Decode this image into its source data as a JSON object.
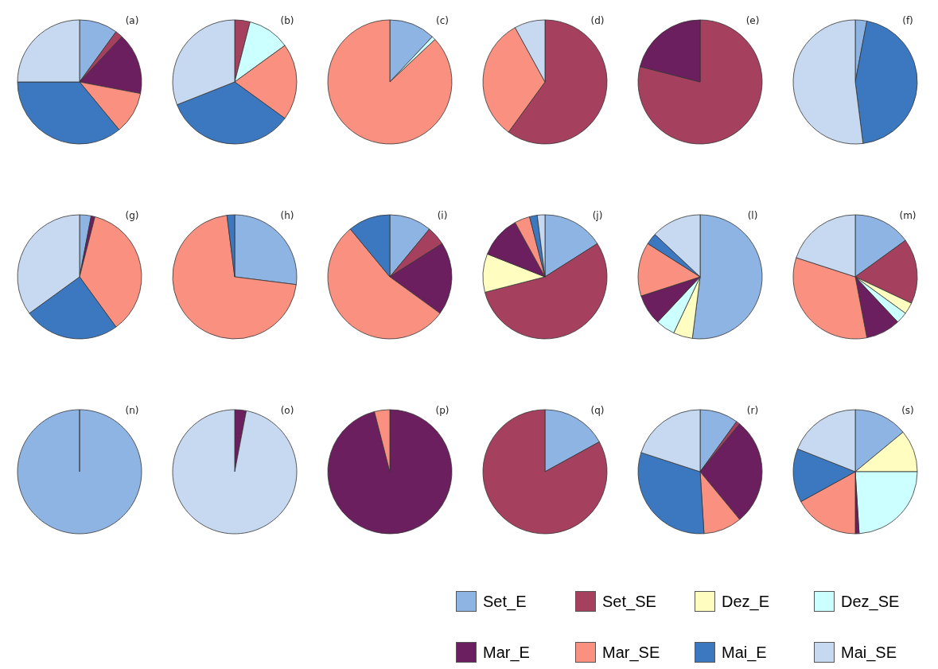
{
  "chart_data": [
    {
      "type": "pie",
      "title": "(a)",
      "categories": [
        "Set_E",
        "Set_SE",
        "Dez_E",
        "Dez_SE",
        "Mar_E",
        "Mar_SE",
        "Mai_E",
        "Mai_SE"
      ],
      "values": [
        10,
        2,
        0,
        0,
        16,
        11,
        36,
        25
      ],
      "colors": [
        "#8eb4e3",
        "#a5415f",
        "#fffdc0",
        "#ccffff",
        "#6b1f5e",
        "#f99080",
        "#3c78c0",
        "#c6d9f1"
      ],
      "legend": "bottom right"
    },
    {
      "type": "pie",
      "title": "(b)",
      "categories": [
        null,
        null,
        null,
        null,
        null,
        null,
        null,
        null
      ],
      "values": [
        0,
        4,
        0,
        11,
        0,
        20,
        34,
        31
      ],
      "colors": [
        "#8eb4e3",
        "#a5415f",
        "#fffdc0",
        "#ccffff",
        "#6b1f5e",
        "#f99080",
        "#3c78c0",
        "#c6d9f1"
      ]
    },
    {
      "type": "pie",
      "title": "(c)",
      "categories": [
        null,
        null,
        null,
        null,
        null,
        null,
        null,
        null
      ],
      "values": [
        12,
        0,
        0,
        1,
        0,
        87,
        0,
        0
      ],
      "colors": [
        "#8eb4e3",
        "#a5415f",
        "#fffdc0",
        "#ccffff",
        "#6b1f5e",
        "#f99080",
        "#3c78c0",
        "#c6d9f1"
      ]
    },
    {
      "type": "pie",
      "title": "(d)",
      "categories": [
        null,
        null,
        null,
        null,
        null,
        null,
        null,
        null
      ],
      "values": [
        0,
        60,
        0,
        0,
        0,
        32,
        0,
        8
      ],
      "colors": [
        "#8eb4e3",
        "#a5415f",
        "#fffdc0",
        "#ccffff",
        "#6b1f5e",
        "#f99080",
        "#3c78c0",
        "#c6d9f1"
      ]
    },
    {
      "type": "pie",
      "title": "(e)",
      "categories": [
        null,
        null,
        null,
        null,
        null,
        null,
        null,
        null
      ],
      "values": [
        0,
        79,
        0,
        0,
        21,
        0,
        0,
        0
      ],
      "colors": [
        "#8eb4e3",
        "#a5415f",
        "#fffdc0",
        "#ccffff",
        "#6b1f5e",
        "#f99080",
        "#3c78c0",
        "#c6d9f1"
      ]
    },
    {
      "type": "pie",
      "title": "(f)",
      "categories": [
        null,
        null,
        null,
        null,
        null,
        null,
        null,
        null
      ],
      "values": [
        3,
        0,
        0,
        0,
        0,
        0,
        45,
        52
      ],
      "colors": [
        "#8eb4e3",
        "#a5415f",
        "#fffdc0",
        "#ccffff",
        "#6b1f5e",
        "#f99080",
        "#3c78c0",
        "#c6d9f1"
      ]
    },
    {
      "type": "pie",
      "title": "(g)",
      "categories": [
        null,
        null,
        null,
        null,
        null,
        null,
        null,
        null
      ],
      "values": [
        3,
        0,
        0,
        0,
        1,
        36,
        25,
        35
      ],
      "colors": [
        "#8eb4e3",
        "#a5415f",
        "#fffdc0",
        "#ccffff",
        "#6b1f5e",
        "#f99080",
        "#3c78c0",
        "#c6d9f1"
      ]
    },
    {
      "type": "pie",
      "title": "(h)",
      "categories": [
        null,
        null,
        null,
        null,
        null,
        null,
        null,
        null
      ],
      "values": [
        27,
        0,
        0,
        0,
        0,
        71,
        2,
        0
      ],
      "colors": [
        "#8eb4e3",
        "#a5415f",
        "#fffdc0",
        "#ccffff",
        "#6b1f5e",
        "#f99080",
        "#3c78c0",
        "#c6d9f1"
      ]
    },
    {
      "type": "pie",
      "title": "(i)",
      "categories": [
        null,
        null,
        null,
        null,
        null,
        null,
        null,
        null
      ],
      "values": [
        11,
        5,
        0,
        0,
        19,
        54,
        11,
        0
      ],
      "colors": [
        "#8eb4e3",
        "#a5415f",
        "#fffdc0",
        "#ccffff",
        "#6b1f5e",
        "#f99080",
        "#3c78c0",
        "#c6d9f1"
      ]
    },
    {
      "type": "pie",
      "title": "(j)",
      "categories": [
        null,
        null,
        null,
        null,
        null,
        null,
        null,
        null
      ],
      "values": [
        16,
        55,
        10,
        0,
        11,
        4,
        2,
        2
      ],
      "colors": [
        "#8eb4e3",
        "#a5415f",
        "#fffdc0",
        "#ccffff",
        "#6b1f5e",
        "#f99080",
        "#3c78c0",
        "#c6d9f1"
      ]
    },
    {
      "type": "pie",
      "title": "(l)",
      "categories": [
        null,
        null,
        null,
        null,
        null,
        null,
        null,
        null
      ],
      "values": [
        52,
        0,
        5,
        5,
        8,
        14,
        3,
        13
      ],
      "colors": [
        "#8eb4e3",
        "#a5415f",
        "#fffdc0",
        "#ccffff",
        "#6b1f5e",
        "#f99080",
        "#3c78c0",
        "#c6d9f1"
      ]
    },
    {
      "type": "pie",
      "title": "(m)",
      "categories": [
        null,
        null,
        null,
        null,
        null,
        null,
        null,
        null
      ],
      "values": [
        15,
        17,
        3,
        3,
        9,
        33,
        0,
        20
      ],
      "colors": [
        "#8eb4e3",
        "#a5415f",
        "#fffdc0",
        "#ccffff",
        "#6b1f5e",
        "#f99080",
        "#3c78c0",
        "#c6d9f1"
      ]
    },
    {
      "type": "pie",
      "title": "(n)",
      "categories": [
        null,
        null,
        null,
        null,
        null,
        null,
        null,
        null
      ],
      "values": [
        100,
        0,
        0,
        0,
        0,
        0,
        0,
        0
      ],
      "colors": [
        "#8eb4e3",
        "#a5415f",
        "#fffdc0",
        "#ccffff",
        "#6b1f5e",
        "#f99080",
        "#3c78c0",
        "#c6d9f1"
      ]
    },
    {
      "type": "pie",
      "title": "(o)",
      "categories": [
        null,
        null,
        null,
        null,
        null,
        null,
        null,
        null
      ],
      "values": [
        0,
        0,
        0,
        0,
        3,
        0,
        0,
        97
      ],
      "colors": [
        "#8eb4e3",
        "#a5415f",
        "#fffdc0",
        "#ccffff",
        "#6b1f5e",
        "#f99080",
        "#3c78c0",
        "#c6d9f1"
      ]
    },
    {
      "type": "pie",
      "title": "(p)",
      "categories": [
        null,
        null,
        null,
        null,
        null,
        null,
        null,
        null
      ],
      "values": [
        0,
        0,
        0,
        0,
        96,
        4,
        0,
        0
      ],
      "colors": [
        "#8eb4e3",
        "#a5415f",
        "#fffdc0",
        "#ccffff",
        "#6b1f5e",
        "#f99080",
        "#3c78c0",
        "#c6d9f1"
      ]
    },
    {
      "type": "pie",
      "title": "(q)",
      "categories": [
        null,
        null,
        null,
        null,
        null,
        null,
        null,
        null
      ],
      "values": [
        17,
        83,
        0,
        0,
        0,
        0,
        0,
        0
      ],
      "colors": [
        "#8eb4e3",
        "#a5415f",
        "#fffdc0",
        "#ccffff",
        "#6b1f5e",
        "#f99080",
        "#3c78c0",
        "#c6d9f1"
      ]
    },
    {
      "type": "pie",
      "title": "(r)",
      "categories": [
        null,
        null,
        null,
        null,
        null,
        null,
        null,
        null
      ],
      "values": [
        10,
        1,
        0,
        0,
        28,
        10,
        31,
        20
      ],
      "colors": [
        "#8eb4e3",
        "#a5415f",
        "#fffdc0",
        "#ccffff",
        "#6b1f5e",
        "#f99080",
        "#3c78c0",
        "#c6d9f1"
      ]
    },
    {
      "type": "pie",
      "title": "(s)",
      "categories": [
        null,
        null,
        null,
        null,
        null,
        null,
        null,
        null
      ],
      "values": [
        14,
        0,
        11,
        24,
        1,
        17,
        14,
        19
      ],
      "colors": [
        "#8eb4e3",
        "#a5415f",
        "#fffdc0",
        "#ccffff",
        "#6b1f5e",
        "#f99080",
        "#3c78c0",
        "#c6d9f1"
      ]
    }
  ]
}
